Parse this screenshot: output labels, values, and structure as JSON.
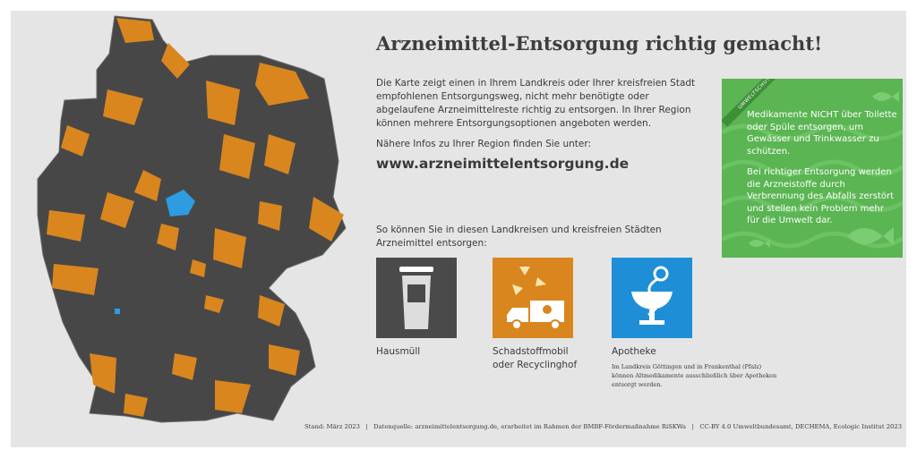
{
  "header": {
    "title": "Arzneimittel-Entsorgung richtig gemacht!"
  },
  "intro": {
    "text": "Die Karte zeigt einen in Ihrem Landkreis oder Ihrer kreisfreien Stadt empfohlenen Entsorgungsweg, nicht mehr benötigte oder abgelaufene Arzneimittelreste richtig zu entsorgen. In Ihrer Region können mehrere Entsorgungsoptionen angeboten werden.",
    "more_info": "Nähere Infos zu Ihrer Region finden Sie unter:",
    "url": "www.arzneimittelentsorgung.de"
  },
  "options": {
    "heading": "So können Sie in diesen Landkreisen und kreisfreien Städten Arzneimittel entsorgen:",
    "items": [
      {
        "label": "Hausmüll"
      },
      {
        "label": "Schadstoffmobil oder Recyclinghof"
      },
      {
        "label": "Apotheke",
        "note": "Im Landkreis Göttingen und in Frankenthal (Pfalz) können Altmedikamente ausschließlich über Apotheken entsorgt werden."
      }
    ]
  },
  "environment_box": {
    "badge": "UMWELTSCHUTZ",
    "paragraphs": [
      "Medikamente NICHT über Toilette oder Spüle entsorgen, um Gewässer und Trinkwasser zu schützen.",
      "Bei richtiger Entsorgung werden die Arzneistoffe durch Verbrennung des Abfalls zer­stört und stellen kein Problem mehr für die Umwelt dar."
    ]
  },
  "footer": "Stand: März 2023   |   Datenquelle: arzneimittelentsorgung.de, erarbeitet im Rahmen der BMBF-Fördermaßnahme RiSKWa   |   CC-BY 4.0 Umweltbundesamt, DECHEMA, Ecologic Institut 2023"
}
